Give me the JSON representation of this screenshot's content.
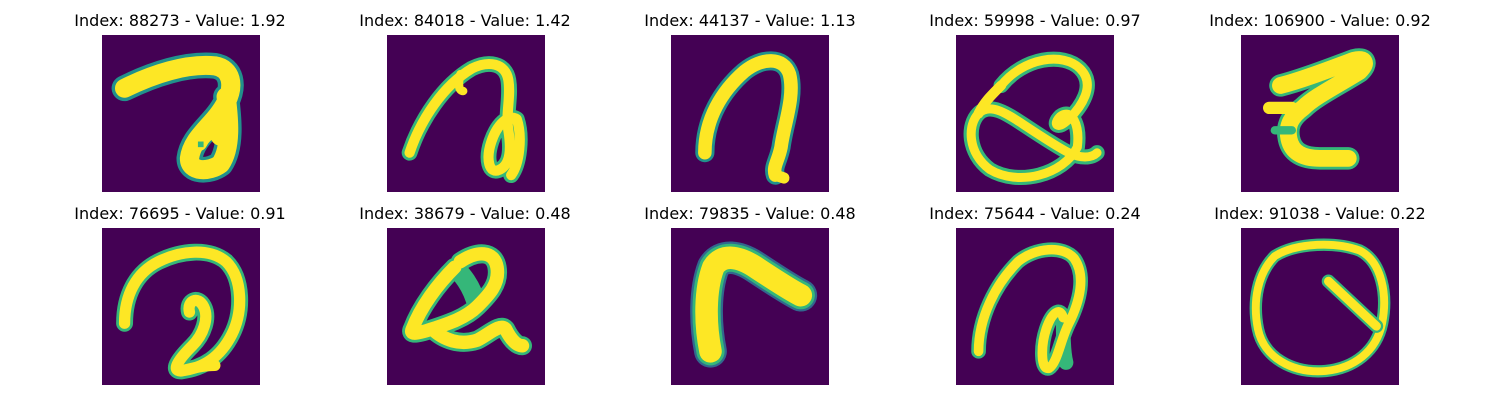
{
  "colors": {
    "background": "#440154",
    "stroke": "#fde725",
    "edge_green": "#35b779",
    "edge_teal": "#21918c",
    "edge_blue": "#31688e"
  },
  "panels": [
    {
      "title": "Index: 88273 - Value: 1.92",
      "glyph": "glyph-7-hook"
    },
    {
      "title": "Index: 84018 - Value: 1.42",
      "glyph": "glyph-loop-hook"
    },
    {
      "title": "Index: 44137 - Value: 1.13",
      "glyph": "glyph-arch"
    },
    {
      "title": "Index: 59998 - Value: 0.97",
      "glyph": "glyph-loop-q"
    },
    {
      "title": "Index: 106900 - Value: 0.92",
      "glyph": "glyph-z-shape"
    },
    {
      "title": "Index: 76695 - Value: 0.91",
      "glyph": "glyph-curl"
    },
    {
      "title": "Index: 38679 - Value: 0.48",
      "glyph": "glyph-triangle-loop"
    },
    {
      "title": "Index: 79835 - Value: 0.48",
      "glyph": "glyph-chevron"
    },
    {
      "title": "Index: 75644 - Value: 0.24",
      "glyph": "glyph-hook-loop"
    },
    {
      "title": "Index: 91038 - Value: 0.22",
      "glyph": "glyph-circle-tick"
    }
  ]
}
